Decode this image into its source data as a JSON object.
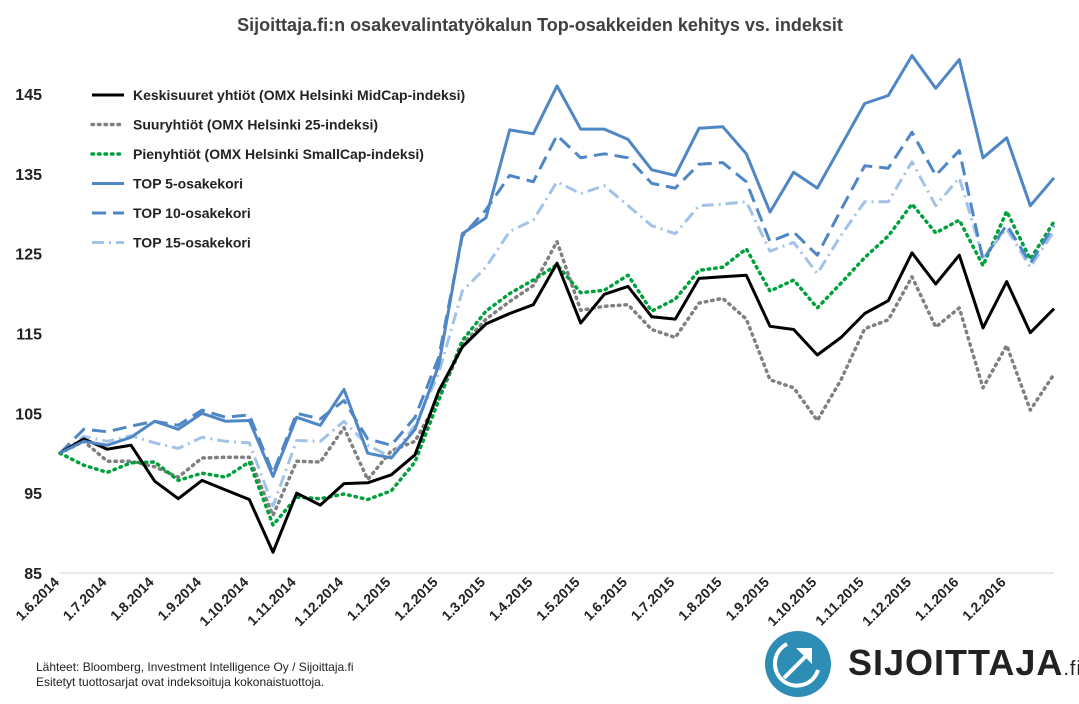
{
  "chart_data": {
    "type": "line",
    "title": "Sijoittaja.fi:n osakevalintatyökalun Top-osakkeiden kehitys vs. indeksit",
    "ylim": [
      85,
      150
    ],
    "yticks": [
      85,
      95,
      105,
      115,
      125,
      135,
      145
    ],
    "grid": false,
    "legend_position": "top-left",
    "x_tick_labels": [
      "1.6.2014",
      "1.7.2014",
      "1.8.2014",
      "1.9.2014",
      "1.10.2014",
      "1.11.2014",
      "1.12.2014",
      "1.1.2015",
      "1.2.2015",
      "1.3.2015",
      "1.4.2015",
      "1.5.2015",
      "1.6.2015",
      "1.7.2015",
      "1.8.2015",
      "1.9.2015",
      "1.10.2015",
      "1.11.2015",
      "1.12.2015",
      "1.1.2016",
      "1.2.2016"
    ],
    "series": [
      {
        "name": "Keskisuuret yhtiöt (OMX Helsinki MidCap-indeksi)",
        "color": "#000000",
        "dash": "solid",
        "values": [
          100,
          101.8,
          100.5,
          101,
          96.5,
          94.3,
          96.6,
          95.4,
          94.2,
          87.6,
          95,
          93.5,
          96.2,
          96.3,
          97.3,
          99.8,
          107.8,
          113.3,
          116.2,
          117.5,
          118.6,
          123.8,
          116.3,
          119.9,
          120.9,
          117.1,
          116.8,
          121.9,
          122.1,
          122.3,
          115.9,
          115.5,
          112.3,
          114.5,
          117.5,
          119.1,
          125.1,
          121.2,
          124.8,
          115.7,
          121.5,
          115.1,
          118.1
        ]
      },
      {
        "name": "Suuryhtiöt (OMX Helsinki 25-indeksi)",
        "color": "#808080",
        "dash": "dotted",
        "values": [
          100,
          101.5,
          99,
          99,
          98.3,
          97,
          99.4,
          99.5,
          99.5,
          92.2,
          99,
          98.9,
          103.2,
          96.7,
          100.3,
          101.5,
          106.8,
          113.5,
          116.8,
          119,
          121,
          126.5,
          117.9,
          118.4,
          118.6,
          115.5,
          114.5,
          118.8,
          119.4,
          116.8,
          109.2,
          108.2,
          104.1,
          109.2,
          115.6,
          116.7,
          122.1,
          115.8,
          118.2,
          108.2,
          113.5,
          105.4,
          109.9
        ]
      },
      {
        "name": "Pienyhtiöt (OMX Helsinki SmallCap-indeksi)",
        "color": "#00A03C",
        "dash": "dotted",
        "values": [
          100,
          98.5,
          97.6,
          98.8,
          98.9,
          96.6,
          97.5,
          97,
          98.9,
          91,
          94.5,
          94.3,
          94.9,
          94.2,
          95.3,
          98.9,
          106.6,
          114.1,
          117.8,
          120,
          121.7,
          123.6,
          120.1,
          120.4,
          122.3,
          117.8,
          119.3,
          122.9,
          123.3,
          125.6,
          120.3,
          121.7,
          118.2,
          121.3,
          124.5,
          127.2,
          131.2,
          127.6,
          129.2,
          123.5,
          130.3,
          124.3,
          129
        ]
      },
      {
        "name": "TOP 5-osakekori",
        "color": "#4F86C6",
        "dash": "solid",
        "values": [
          100,
          101.5,
          101,
          102,
          104,
          103,
          105,
          104,
          104.1,
          97.1,
          104.5,
          103.5,
          108,
          100,
          99.4,
          103,
          111,
          127.5,
          129.5,
          140.5,
          140,
          146,
          140.6,
          140.6,
          139.3,
          135.5,
          134.8,
          140.7,
          140.9,
          137.5,
          130.2,
          135.2,
          133.2,
          138.5,
          143.8,
          144.8,
          149.8,
          145.7,
          149.3,
          137,
          139.5,
          131,
          134.5
        ]
      },
      {
        "name": "TOP 10-osakekori",
        "color": "#4F86C6",
        "dash": "dashed",
        "values": [
          100,
          103,
          102.7,
          103.4,
          104,
          103.5,
          105.4,
          104.5,
          104.8,
          97.5,
          105,
          104.3,
          106.6,
          101.8,
          101,
          104.5,
          112,
          127.2,
          130.5,
          134.8,
          134,
          139.8,
          137,
          137.5,
          137,
          133.8,
          133.2,
          136.2,
          136.4,
          134,
          126.5,
          127.7,
          124.8,
          130.5,
          136,
          135.7,
          140.2,
          134.8,
          137.9,
          124.2,
          128.6,
          123.8,
          128.5
        ]
      },
      {
        "name": "TOP 15-osakekori",
        "color": "#A3C2E8",
        "dash": "dashdot",
        "values": [
          100,
          102.1,
          101.5,
          102.2,
          101.3,
          100.6,
          102,
          101.5,
          101.3,
          93.4,
          101.6,
          101.5,
          104,
          101,
          99.5,
          103.5,
          110,
          120.3,
          123.3,
          127.8,
          129.2,
          134,
          132.5,
          133.5,
          131,
          128.5,
          127.5,
          131,
          131.2,
          131.5,
          125.3,
          126.4,
          122.5,
          127.3,
          131.5,
          131.5,
          136.5,
          131,
          134.5,
          124.5,
          128.1,
          123.3,
          127.8
        ]
      }
    ]
  },
  "footer": {
    "source_line1": "Lähteet: Bloomberg, Investment Intelligence Oy / Sijoittaja.fi",
    "source_line2": "Esitetyt tuottosarjat ovat indeksoituja kokonaistuottoja."
  },
  "logo": {
    "text": "SIJOITTAJA",
    "suffix": ".fi",
    "icon": "arrow-up-right-icon",
    "accent": "#2E8DB5"
  }
}
